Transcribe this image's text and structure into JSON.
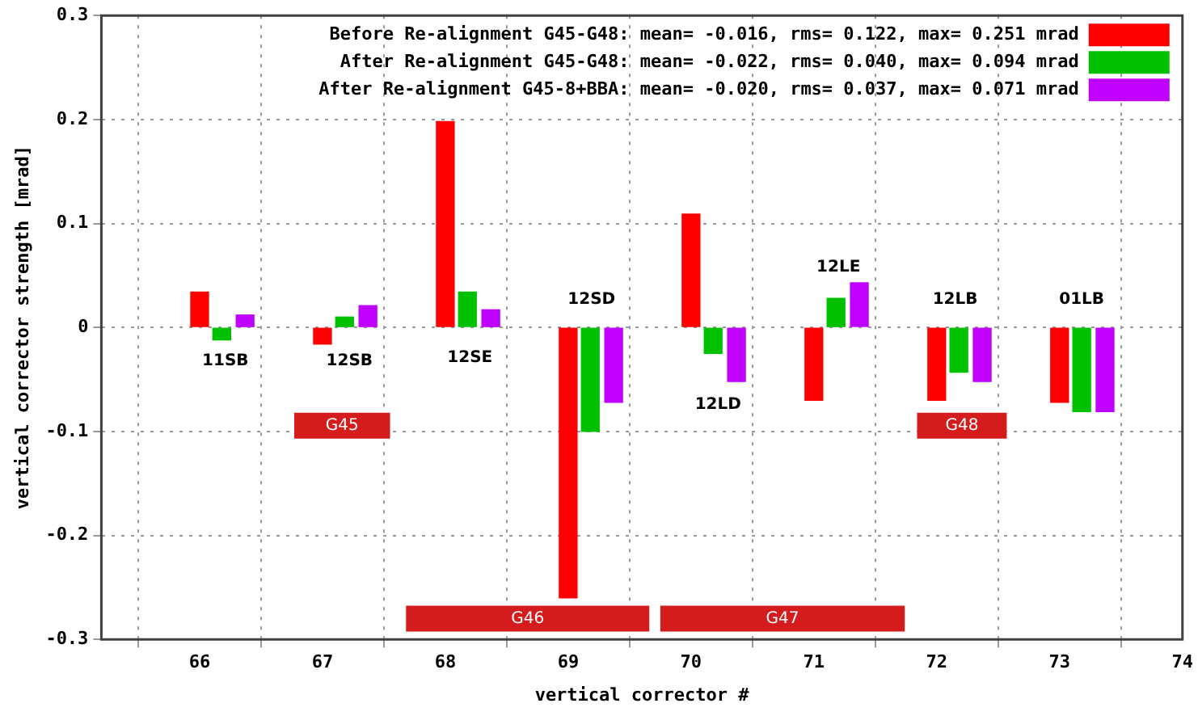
{
  "chart_data": {
    "type": "bar",
    "xlabel": "vertical corrector #",
    "ylabel": "vertical corrector strength [mrad]",
    "xlim": [
      65.2,
      74
    ],
    "xticks": [
      66,
      67,
      68,
      69,
      70,
      71,
      72,
      73,
      74
    ],
    "ylim": [
      -0.3,
      0.3
    ],
    "yticks": [
      -0.3,
      -0.2,
      -0.1,
      0,
      0.1,
      0.2,
      0.3
    ],
    "grid": true,
    "legend": "top right",
    "series": [
      {
        "name": "Before Re-alignment G45-G48: mean= -0.016, rms= 0.122, max= 0.251 mrad",
        "color": "#ff0000",
        "x": [
          66,
          67,
          68,
          69,
          70,
          71,
          72,
          73
        ],
        "values": [
          0.034,
          -0.016,
          0.198,
          -0.26,
          0.109,
          -0.07,
          -0.07,
          -0.072
        ]
      },
      {
        "name": "After Re-alignment G45-G48: mean= -0.022, rms= 0.040, max= 0.094 mrad",
        "color": "#00c000",
        "x": [
          66.18,
          67.18,
          68.18,
          69.18,
          70.18,
          71.18,
          72.18,
          73.18
        ],
        "values": [
          -0.012,
          0.01,
          0.034,
          -0.1,
          -0.025,
          0.028,
          -0.043,
          -0.081
        ]
      },
      {
        "name": "After Re-alignment G45-8+BBA: mean= -0.020, rms= 0.037, max= 0.071 mrad",
        "color": "#c000ff",
        "x": [
          66.37,
          67.37,
          68.37,
          69.37,
          70.37,
          71.37,
          72.37,
          73.37
        ],
        "values": [
          0.012,
          0.021,
          0.017,
          -0.072,
          -0.052,
          0.043,
          -0.052,
          -0.081
        ]
      }
    ],
    "annotations": [
      "11SB",
      "12SB",
      "12SE",
      "12SD",
      "12LD",
      "12LE",
      "12LB",
      "01LB"
    ],
    "bands": [
      {
        "axis": "x",
        "from": 66.77,
        "to": 67.55,
        "label": "G45",
        "color": "#d41c1c"
      },
      {
        "axis": "x",
        "from": 67.68,
        "to": 69.66,
        "label": "G46",
        "color": "#d41c1c"
      },
      {
        "axis": "x",
        "from": 69.75,
        "to": 71.74,
        "label": "G47",
        "color": "#d41c1c"
      },
      {
        "axis": "x",
        "from": 71.84,
        "to": 72.57,
        "label": "G48",
        "color": "#d41c1c"
      }
    ]
  }
}
